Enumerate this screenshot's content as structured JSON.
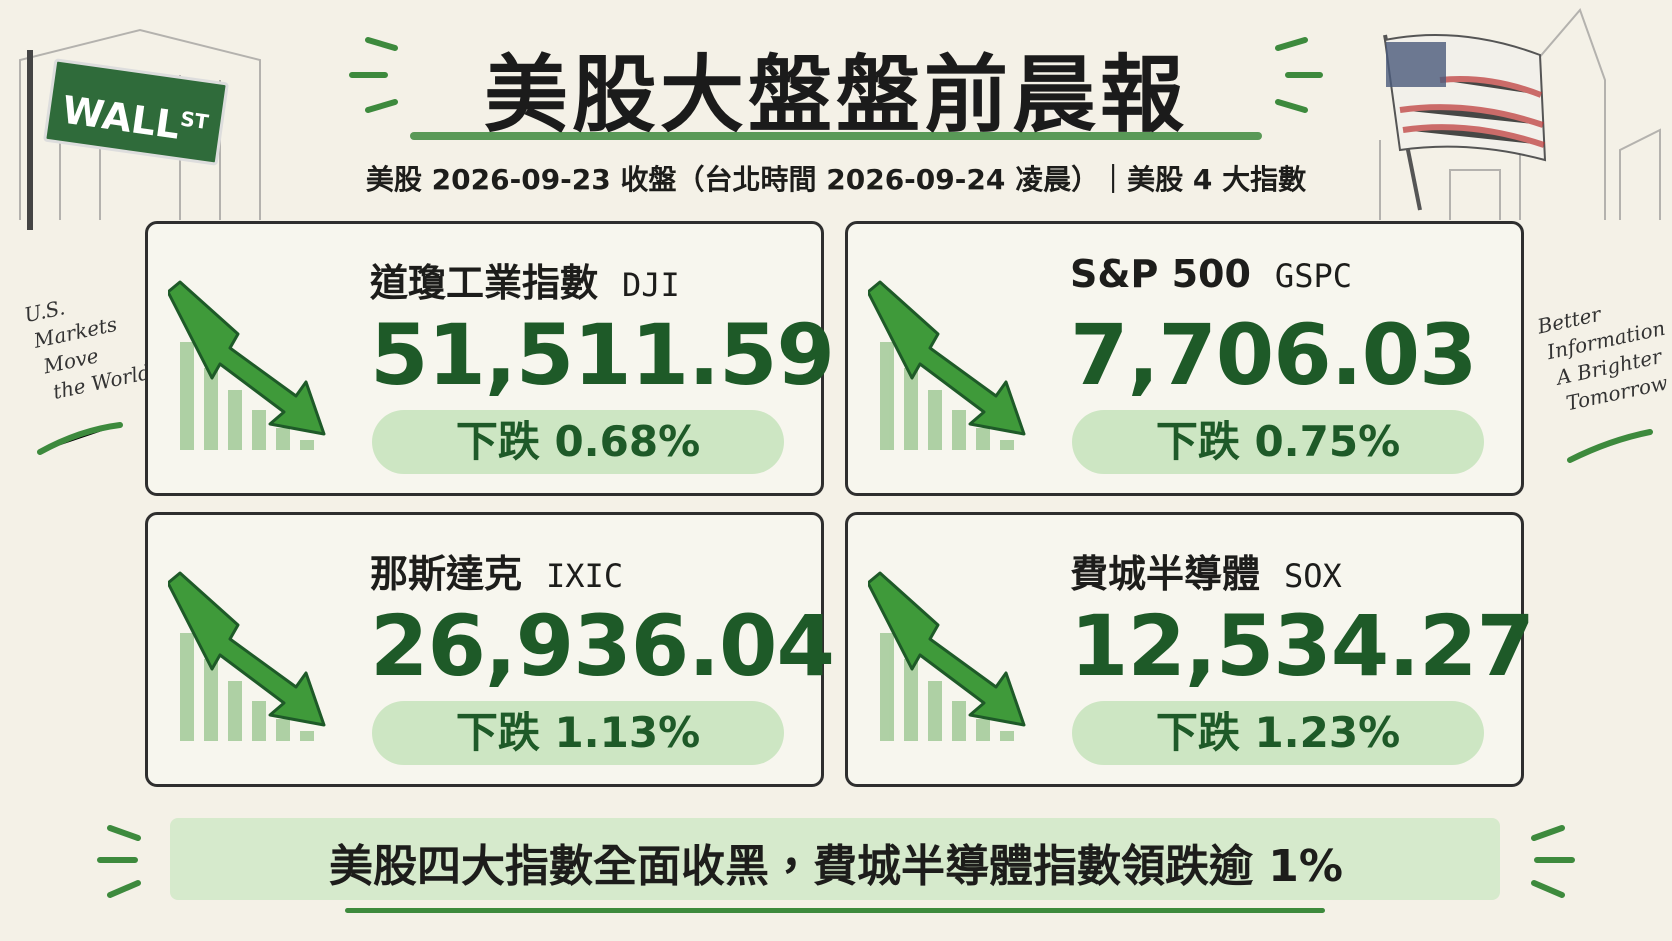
{
  "header": {
    "title": "美股大盤盤前晨報",
    "subtitle": "美股 2026-09-23 收盤（台北時間 2026-09-24 凌晨）｜美股 4 大指數"
  },
  "sign": {
    "main": "WALL",
    "sup": "ST"
  },
  "left_note": [
    "U.S.",
    "Markets",
    "Move",
    "the World"
  ],
  "right_note": [
    "Better",
    "Information",
    "A Brighter",
    "Tomorrow"
  ],
  "cards": [
    {
      "name": "道瓊工業指數",
      "code": "DJI",
      "value": "51,511.59",
      "change": "下跌 0.68%"
    },
    {
      "name": "S&P 500",
      "code": "GSPC",
      "value": "7,706.03",
      "change": "下跌 0.75%"
    },
    {
      "name": "那斯達克",
      "code": "IXIC",
      "value": "26,936.04",
      "change": "下跌 1.13%"
    },
    {
      "name": "費城半導體",
      "code": "SOX",
      "value": "12,534.27",
      "change": "下跌 1.23%"
    }
  ],
  "footer": {
    "banner": "美股四大指數全面收黑，費城半導體指數領跌逾 1%"
  }
}
